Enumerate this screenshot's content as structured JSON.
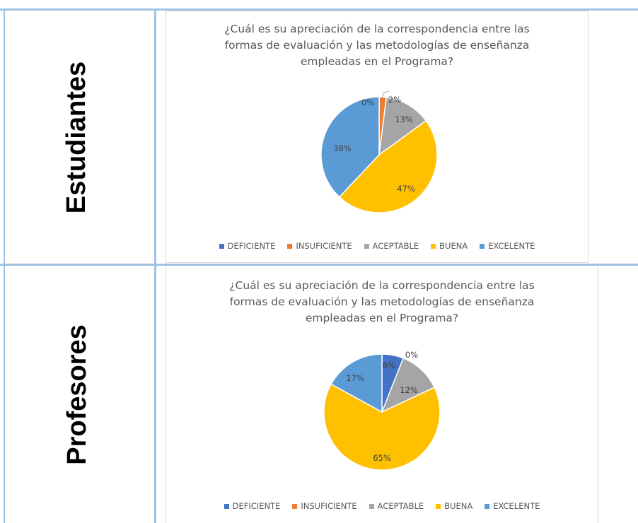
{
  "rows": [
    {
      "label": "Estudiantes"
    },
    {
      "label": "Profesores"
    }
  ],
  "legend": [
    {
      "name": "DEFICIENTE",
      "color": "#4472c4"
    },
    {
      "name": "INSUFICIENTE",
      "color": "#ed7d31"
    },
    {
      "name": "ACEPTABLE",
      "color": "#a5a5a5"
    },
    {
      "name": "BUENA",
      "color": "#ffc000"
    },
    {
      "name": "EXCELENTE",
      "color": "#5b9bd5"
    }
  ],
  "chart_data": [
    {
      "type": "pie",
      "title": [
        "¿Cuál es su apreciación de la correspondencia entre las",
        "formas de evaluación y las metodologías de enseñanza",
        "empleadas en el Programa?"
      ],
      "categories": [
        "DEFICIENTE",
        "INSUFICIENTE",
        "ACEPTABLE",
        "BUENA",
        "EXCELENTE"
      ],
      "values": [
        0,
        2,
        13,
        47,
        38
      ],
      "data_labels": [
        "0%",
        "2%",
        "13%",
        "47%",
        "38%"
      ],
      "legend_position": "bottom"
    },
    {
      "type": "pie",
      "title": [
        "¿Cuál es su apreciación de la correspondencia entre las",
        "formas de evaluación y las metodologías de enseñanza",
        "empleadas en el Programa?"
      ],
      "categories": [
        "DEFICIENTE",
        "INSUFICIENTE",
        "ACEPTABLE",
        "BUENA",
        "EXCELENTE"
      ],
      "values": [
        6,
        0,
        12,
        65,
        17
      ],
      "data_labels": [
        "6%",
        "0%",
        "12%",
        "65%",
        "17%"
      ],
      "legend_position": "bottom"
    }
  ]
}
